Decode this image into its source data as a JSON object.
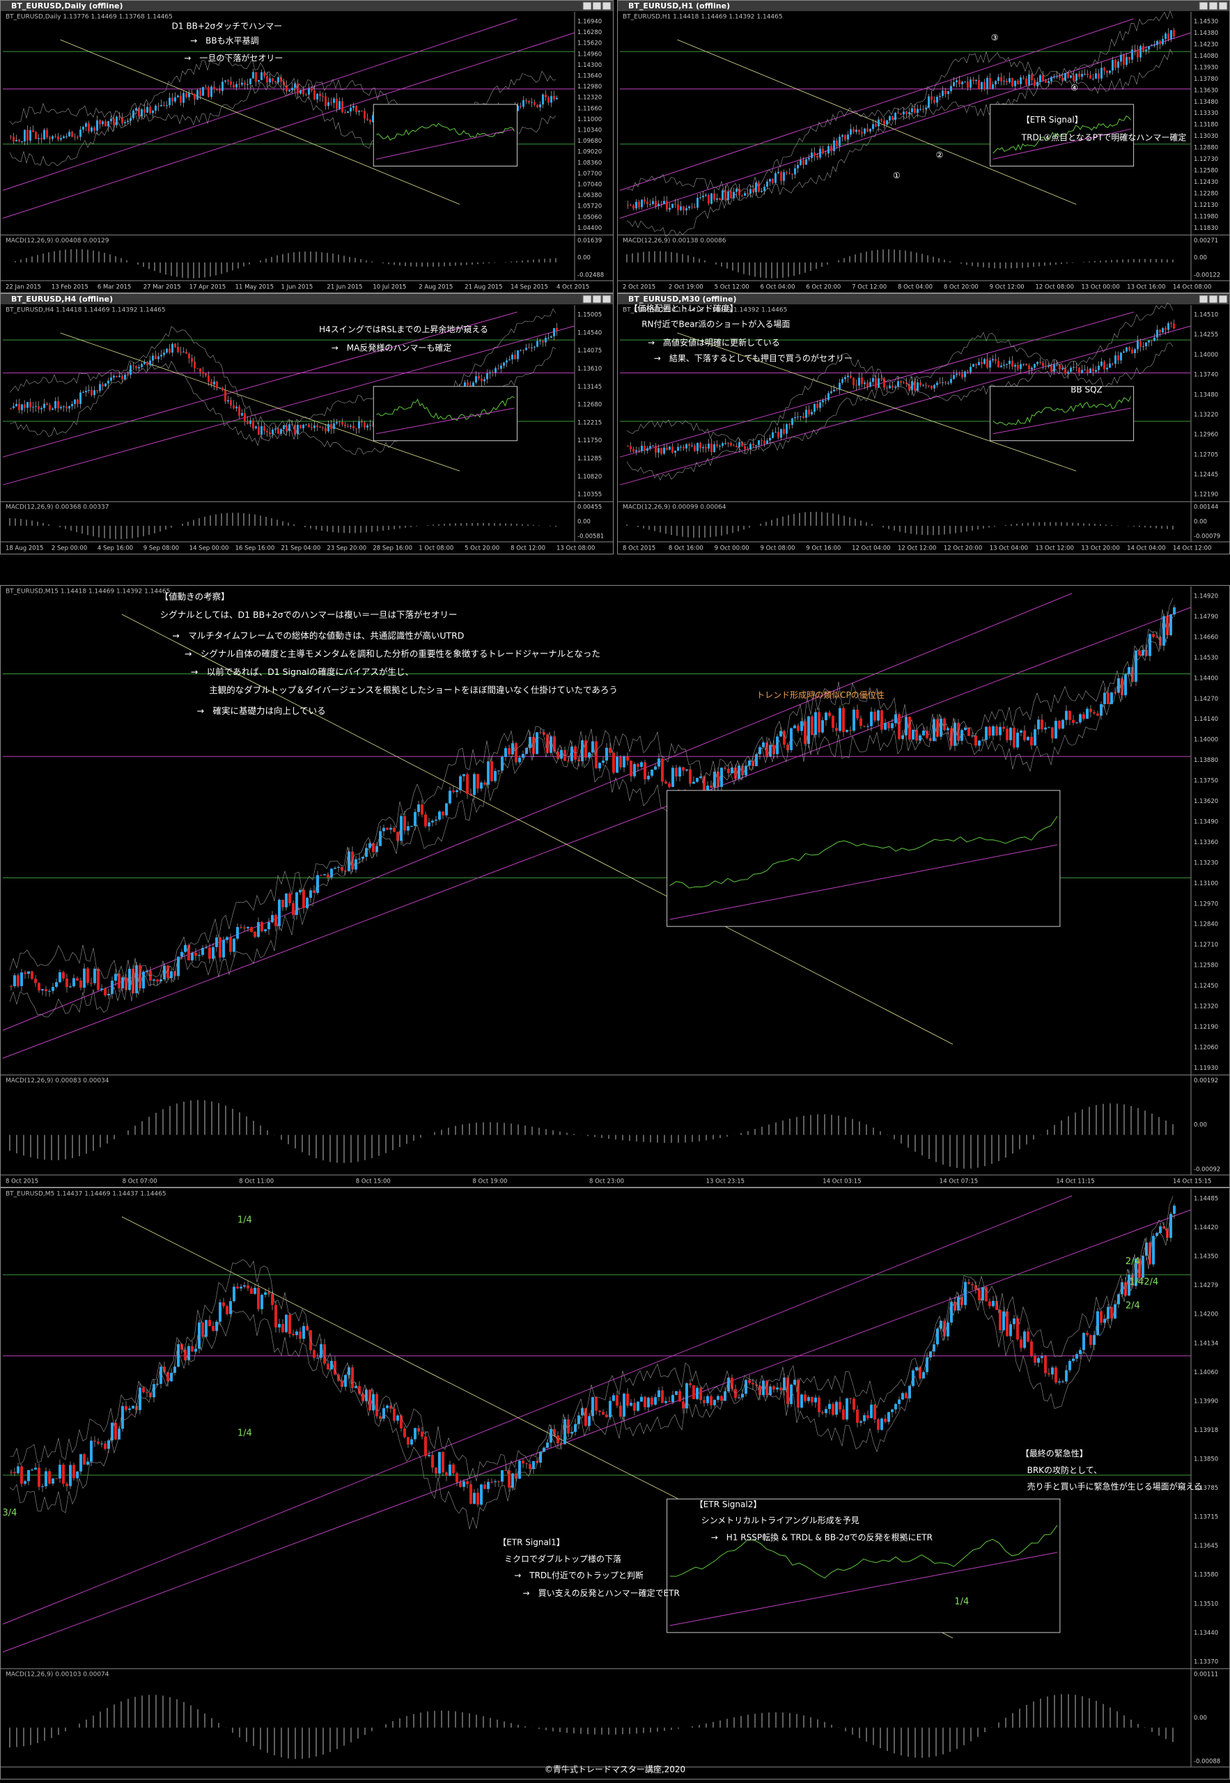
{
  "panels": [
    {
      "title": "BT_EURUSD,Daily (offline)",
      "header": "BT_EURUSD,Daily 1.13776 1.14469 1.13768 1.14465",
      "annotations": [
        "D1 BB+2σタッチでハンマー",
        "→　BBも水平基調",
        "→　一旦の下落がセオリー"
      ],
      "price_labels": [
        "1.16940",
        "1.16280",
        "1.15620",
        "1.14960",
        "1.14300",
        "1.13640",
        "1.12980",
        "1.12320",
        "1.11660",
        "1.11000",
        "1.10340",
        "1.09680",
        "1.09020",
        "1.08360",
        "1.07700",
        "1.07040",
        "1.06380",
        "1.05720",
        "1.05060",
        "1.04400"
      ],
      "time_labels": [
        "22 Jan 2015",
        "13 Feb 2015",
        "6 Mar 2015",
        "27 Mar 2015",
        "17 Apr 2015",
        "11 May 2015",
        "1 Jun 2015",
        "21 Jun 2015",
        "10 Jul 2015",
        "2 Aug 2015",
        "21 Aug 2015",
        "14 Sep 2015",
        "4 Oct 2015"
      ],
      "macd_header": "MACD(12,26,9) 0.00408 0.00129",
      "macd_labels": [
        "0.01639",
        "0.00",
        "-0.02488"
      ]
    },
    {
      "title": "BT_EURUSD,H1 (offline)",
      "header": "BT_EURUSD,H1 1.14418 1.14469 1.14392 1.14465",
      "annotations": [
        "【ETR Signal】",
        "TRDL④点目となるPTで明確なハンマー確定",
        "③",
        "④",
        "①",
        "②"
      ],
      "price_labels": [
        "1.14530",
        "1.14380",
        "1.14230",
        "1.14080",
        "1.13930",
        "1.13780",
        "1.13630",
        "1.13480",
        "1.13330",
        "1.13180",
        "1.13030",
        "1.12880",
        "1.12730",
        "1.12580",
        "1.12430",
        "1.12280",
        "1.12130",
        "1.11980",
        "1.11830"
      ],
      "time_labels": [
        "2 Oct 2015",
        "2 Oct 19:00",
        "5 Oct 12:00",
        "6 Oct 04:00",
        "6 Oct 20:00",
        "7 Oct 12:00",
        "8 Oct 04:00",
        "8 Oct 20:00",
        "9 Oct 12:00",
        "12 Oct 08:00",
        "13 Oct 00:00",
        "13 Oct 16:00",
        "14 Oct 08:00"
      ],
      "macd_header": "MACD(12,26,9) 0.00138 0.00086",
      "macd_labels": [
        "0.00271",
        "0.00",
        "-0.00122"
      ]
    },
    {
      "title": "BT_EURUSD,H4 (offline)",
      "header": "BT_EURUSD,H4 1.14418 1.14469 1.14392 1.14465",
      "annotations": [
        "H4スイングではRSLまでの上昇余地が窺える",
        "→　MA反発様のハンマーも確定"
      ],
      "price_labels": [
        "1.15005",
        "1.14540",
        "1.14075",
        "1.13610",
        "1.13145",
        "1.12680",
        "1.12215",
        "1.11750",
        "1.11285",
        "1.10820",
        "1.10355"
      ],
      "time_labels": [
        "18 Aug 2015",
        "2 Sep 00:00",
        "4 Sep 16:00",
        "9 Sep 08:00",
        "14 Sep 00:00",
        "16 Sep 16:00",
        "21 Sep 04:00",
        "23 Sep 20:00",
        "28 Sep 16:00",
        "1 Oct 08:00",
        "5 Oct 20:00",
        "8 Oct 12:00",
        "13 Oct 08:00"
      ],
      "macd_header": "MACD(12,26,9) 0.00368 0.00337",
      "macd_labels": [
        "0.00455",
        "0.00",
        "-0.00581"
      ]
    },
    {
      "title": "BT_EURUSD,M30 (offline)",
      "header": "BT_EURUSD,M30 1.14418 1.14469 1.14392 1.14465",
      "annotations": [
        "【価格配置とトレンド確度】",
        "RN付近でBear派のショートが入る場面",
        "→　高値安値は明確に更新している",
        "→　結果、下落するとしても押目で買うのがセオリー",
        "BB SQZ"
      ],
      "price_labels": [
        "1.14510",
        "1.14255",
        "1.14000",
        "1.13740",
        "1.13480",
        "1.13220",
        "1.12960",
        "1.12705",
        "1.12445",
        "1.12190"
      ],
      "time_labels": [
        "8 Oct 2015",
        "8 Oct 16:00",
        "9 Oct 00:00",
        "9 Oct 08:00",
        "9 Oct 16:00",
        "12 Oct 04:00",
        "12 Oct 12:00",
        "12 Oct 20:00",
        "13 Oct 04:00",
        "13 Oct 12:00",
        "13 Oct 20:00",
        "14 Oct 04:00",
        "14 Oct 12:00"
      ],
      "macd_header": "MACD(12,26,9) 0.00099 0.00064",
      "macd_labels": [
        "0.00144",
        "0.00",
        "-0.00079"
      ]
    },
    {
      "header": "BT_EURUSD,M15 1.14418 1.14469 1.14392 1.14465",
      "annotations": [
        "【値動きの考察】",
        "シグナルとしては、D1 BB+2σでのハンマーは複い＝一旦は下落がセオリー",
        "→　マルチタイムフレームでの総体的な値動きは、共通認識性が高いUTRD",
        "→　シグナル自体の確度と主導モメンタムを調和した分析の重要性を象徴するトレードジャーナルとなった",
        "→　以前であれば、D1 Signalの確度にバイアスが生じ、",
        "主観的なダブルトップ＆ダイバージェンスを根拠としたショートをほぼ間違いなく仕掛けていたであろう",
        "→　確実に基礎力は向上している",
        "トレンド形成時の類似CPの優位性"
      ],
      "price_labels": [
        "1.14920",
        "1.14790",
        "1.14660",
        "1.14530",
        "1.14400",
        "1.14270",
        "1.14140",
        "1.14000",
        "1.13880",
        "1.13750",
        "1.13620",
        "1.13490",
        "1.13360",
        "1.13230",
        "1.13100",
        "1.12970",
        "1.12840",
        "1.12710",
        "1.12580",
        "1.12450",
        "1.12320",
        "1.12190",
        "1.12060",
        "1.11930"
      ],
      "time_labels": [
        "8 Oct 2015",
        "8 Oct 07:00",
        "8 Oct 11:00",
        "8 Oct 15:00",
        "8 Oct 19:00",
        "8 Oct 23:00",
        "13 Oct 23:15",
        "14 Oct 03:15",
        "14 Oct 07:15",
        "14 Oct 11:15",
        "14 Oct 15:15"
      ],
      "macd_header": "MACD(12,26,9) 0.00083 0.00034",
      "macd_labels": [
        "0.00192",
        "0.00",
        "-0.00092"
      ]
    },
    {
      "header": "BT_EURUSD,M5 1.14437 1.14469 1.14437 1.14465",
      "annotations": [
        "【ETR Signal1】",
        "ミクロでダブルトップ様の下落",
        "→　TRDL付近でのトラップと判断",
        "→　買い支えの反発とハンマー確定でETR",
        "【ETR Signal2】",
        "シンメトリカルトライアングル形成を予見",
        "→　H1 RSSP転換 & TRDL & BB-2σでの反発を根拠にETR",
        "【最終の緊急性】",
        "BRKの攻防として、",
        "売り手と買い手に緊急性が生じる場面が窺える",
        "1/4",
        "1/4",
        "3/4",
        "1/4",
        "2/4",
        "2/4",
        "1/4",
        "2/4"
      ],
      "price_labels": [
        "1.14485",
        "1.14420",
        "1.14350",
        "1.14279",
        "1.14200",
        "1.14134",
        "1.14060",
        "1.13990",
        "1.13918",
        "1.13850",
        "1.13785",
        "1.13715",
        "1.13645",
        "1.13580",
        "1.13510",
        "1.13440",
        "1.13370"
      ],
      "time_labels": [],
      "macd_header": "MACD(12,26,9) 0.00103 0.00074",
      "macd_labels": [
        "0.00111",
        "0.00",
        "-0.00088"
      ]
    }
  ],
  "footer": "©青牛式トレードマスター講座,2020"
}
